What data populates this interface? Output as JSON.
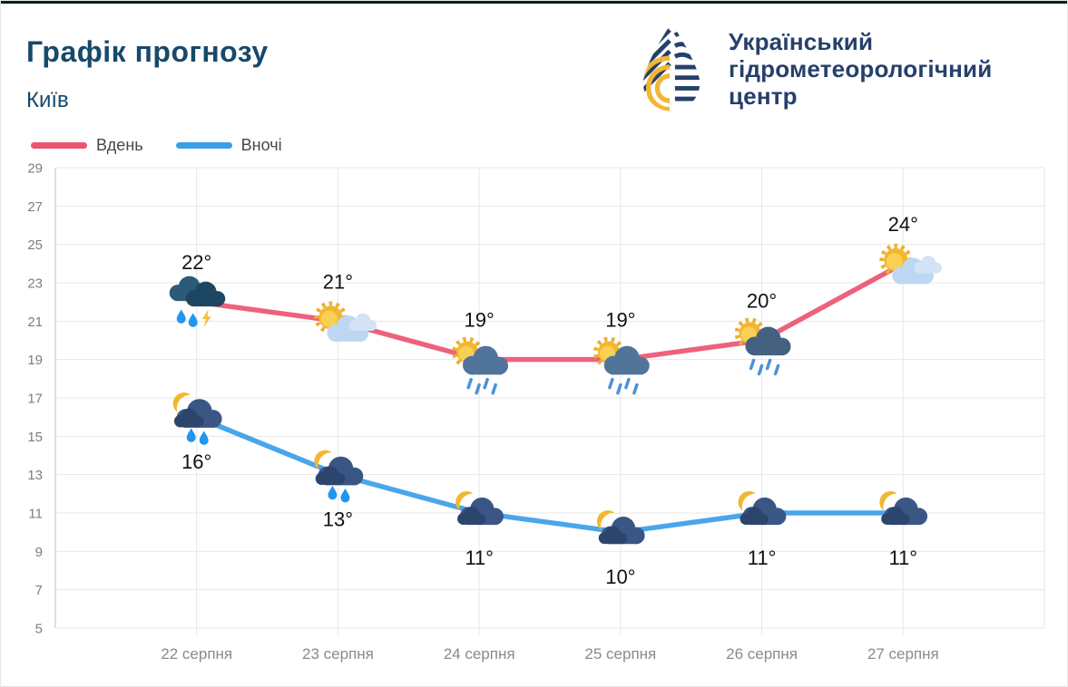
{
  "header": {
    "title": "Графік прогнозу",
    "subtitle": "Київ",
    "logo_lines": [
      "Український",
      "гідрометеорологічний",
      "центр"
    ]
  },
  "legend": [
    {
      "label": "Вдень",
      "color": "#ed5472"
    },
    {
      "label": "Вночі",
      "color": "#3b9ee8"
    }
  ],
  "chart_data": {
    "type": "line",
    "title": "Графік прогнозу — Київ",
    "xlabel": "",
    "ylabel": "",
    "categories": [
      "22 серпня",
      "23 серпня",
      "24 серпня",
      "25 серпня",
      "26 серпня",
      "27 серпня"
    ],
    "series": [
      {
        "name": "Вдень",
        "color": "#ed5472",
        "values": [
          22,
          21,
          19,
          19,
          20,
          24
        ],
        "labels": [
          "22°",
          "21°",
          "19°",
          "19°",
          "20°",
          "24°"
        ],
        "icons": [
          "storm-rain-lightning",
          "sun-cloud",
          "sun-cloud-rain",
          "sun-cloud-rain",
          "sun-darkcloud-rain",
          "sun-cloud"
        ],
        "label_position": "above"
      },
      {
        "name": "Вночі",
        "color": "#3b9ee8",
        "values": [
          16,
          13,
          11,
          10,
          11,
          11
        ],
        "labels": [
          "16°",
          "13°",
          "11°",
          "10°",
          "11°",
          "11°"
        ],
        "icons": [
          "moon-cloud-rain",
          "moon-cloud-rain",
          "moon-cloud",
          "moon-cloud",
          "moon-cloud",
          "moon-cloud"
        ],
        "label_position": "below"
      }
    ],
    "ylim": [
      5,
      29
    ],
    "yticks": [
      29,
      27,
      25,
      23,
      21,
      19,
      17,
      15,
      13,
      11,
      9,
      7,
      5
    ],
    "grid": true,
    "legend_position": "top-left"
  },
  "colors": {
    "title": "#17496b",
    "logo_navy": "#25406b",
    "logo_yellow": "#f2b635",
    "grid": "#e7e7e7",
    "axis": "#d5d5d5",
    "tick_text": "#7d7d7d"
  }
}
